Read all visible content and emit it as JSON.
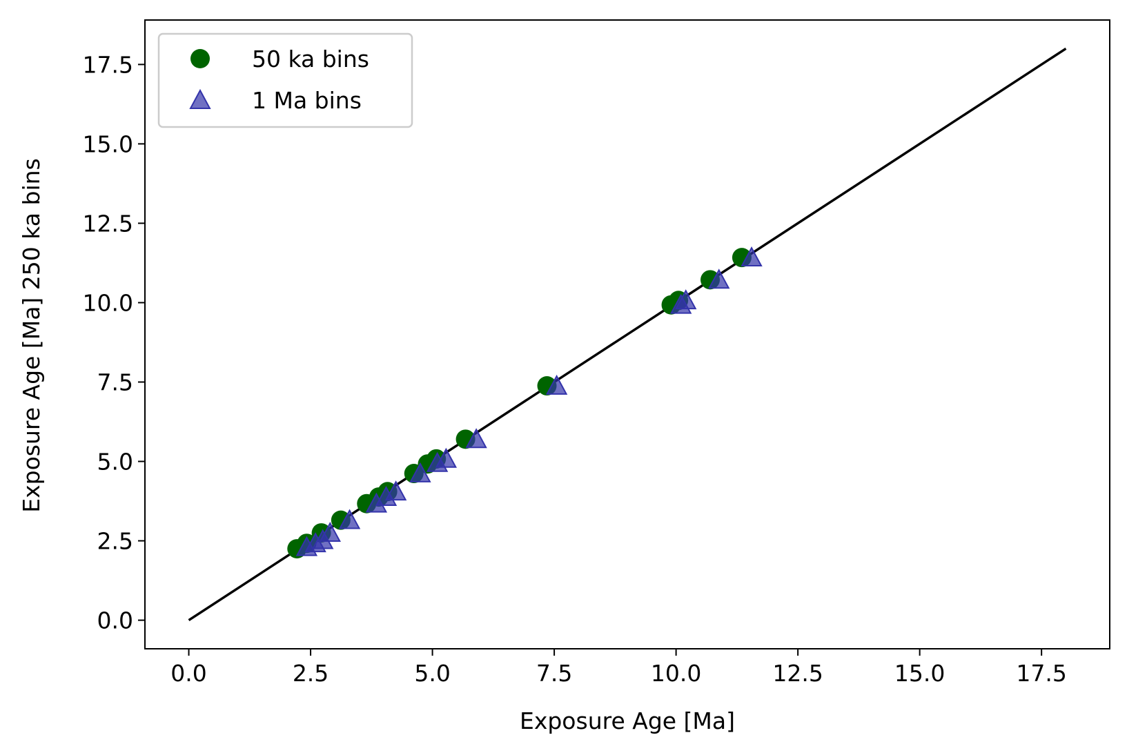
{
  "chart_data": {
    "type": "scatter",
    "title": "",
    "xlabel": "Exposure Age [Ma]",
    "ylabel": "Exposure Age [Ma] 250 ka bins",
    "xlim": [
      -0.9,
      18.9
    ],
    "ylim": [
      -0.9,
      18.9
    ],
    "x_ticks": [
      "0.0",
      "2.5",
      "5.0",
      "7.5",
      "10.0",
      "12.5",
      "15.0",
      "17.5"
    ],
    "y_ticks": [
      "0.0",
      "2.5",
      "5.0",
      "7.5",
      "10.0",
      "12.5",
      "15.0",
      "17.5"
    ],
    "grid": false,
    "legend_position": "upper-left",
    "reference_line": {
      "x": [
        0,
        18
      ],
      "y": [
        0,
        18
      ],
      "color": "#000000"
    },
    "series": [
      {
        "name": "50 ka bins",
        "marker": "circle",
        "color": "#006400",
        "points": [
          {
            "x": 2.22,
            "y": 2.25
          },
          {
            "x": 2.42,
            "y": 2.42
          },
          {
            "x": 2.72,
            "y": 2.75
          },
          {
            "x": 3.12,
            "y": 3.15
          },
          {
            "x": 3.65,
            "y": 3.67
          },
          {
            "x": 3.9,
            "y": 3.88
          },
          {
            "x": 4.08,
            "y": 4.05
          },
          {
            "x": 4.62,
            "y": 4.62
          },
          {
            "x": 4.9,
            "y": 4.92
          },
          {
            "x": 5.08,
            "y": 5.08
          },
          {
            "x": 5.68,
            "y": 5.7
          },
          {
            "x": 7.35,
            "y": 7.38
          },
          {
            "x": 9.9,
            "y": 9.93
          },
          {
            "x": 10.05,
            "y": 10.07
          },
          {
            "x": 10.7,
            "y": 10.72
          },
          {
            "x": 11.35,
            "y": 11.42
          }
        ]
      },
      {
        "name": "1 Ma bins",
        "marker": "triangle",
        "color": "#3333aa",
        "points": [
          {
            "x": 2.42,
            "y": 2.3
          },
          {
            "x": 2.6,
            "y": 2.42
          },
          {
            "x": 2.75,
            "y": 2.52
          },
          {
            "x": 2.9,
            "y": 2.75
          },
          {
            "x": 3.3,
            "y": 3.15
          },
          {
            "x": 3.85,
            "y": 3.67
          },
          {
            "x": 4.05,
            "y": 3.88
          },
          {
            "x": 4.25,
            "y": 4.05
          },
          {
            "x": 4.75,
            "y": 4.62
          },
          {
            "x": 5.1,
            "y": 4.95
          },
          {
            "x": 5.28,
            "y": 5.08
          },
          {
            "x": 5.9,
            "y": 5.7
          },
          {
            "x": 7.55,
            "y": 7.38
          },
          {
            "x": 10.1,
            "y": 9.93
          },
          {
            "x": 10.2,
            "y": 10.07
          },
          {
            "x": 10.88,
            "y": 10.72
          },
          {
            "x": 11.55,
            "y": 11.42
          }
        ]
      }
    ]
  }
}
